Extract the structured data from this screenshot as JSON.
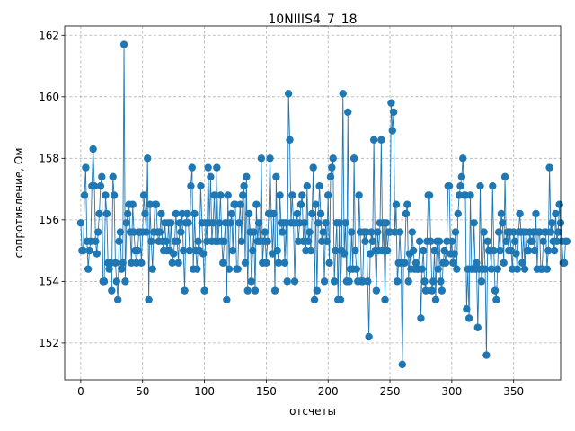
{
  "chart_data": {
    "type": "line",
    "title": "10NIIIS4_7_18",
    "xlabel": "отсчеты",
    "ylabel": "сопротивление, Ом",
    "xlim": [
      -13,
      388
    ],
    "ylim": [
      150.8,
      162.3
    ],
    "xticks": [
      0,
      50,
      100,
      150,
      200,
      250,
      300,
      350
    ],
    "yticks": [
      152,
      154,
      156,
      158,
      160,
      162
    ],
    "grid": true,
    "marker": "circle",
    "line_color": "#1f77b4",
    "series": [
      {
        "name": "",
        "values": [
          155.9,
          155.0,
          155.0,
          156.8,
          157.7,
          155.3,
          154.4,
          155.0,
          155.3,
          157.1,
          158.3,
          157.1,
          155.3,
          154.9,
          155.6,
          156.2,
          157.1,
          157.4,
          154.0,
          154.0,
          156.8,
          156.2,
          154.6,
          154.4,
          154.6,
          153.7,
          157.4,
          156.8,
          154.6,
          154.0,
          153.4,
          155.3,
          155.6,
          154.4,
          154.6,
          161.7,
          154.0,
          155.9,
          156.2,
          156.5,
          155.6,
          154.6,
          156.5,
          155.6,
          155.0,
          154.6,
          155.0,
          155.6,
          155.6,
          154.6,
          155.6,
          156.8,
          156.2,
          155.6,
          158.0,
          153.4,
          156.5,
          155.3,
          154.4,
          155.6,
          156.5,
          156.5,
          155.6,
          155.3,
          155.6,
          156.2,
          155.3,
          155.0,
          155.9,
          155.3,
          155.0,
          155.9,
          155.0,
          155.9,
          154.6,
          154.9,
          155.3,
          156.2,
          155.3,
          154.6,
          155.9,
          155.6,
          156.2,
          155.0,
          153.7,
          155.9,
          156.2,
          155.9,
          155.0,
          157.1,
          157.7,
          154.4,
          156.2,
          155.0,
          154.4,
          155.3,
          155.0,
          157.1,
          155.9,
          154.9,
          153.7,
          155.9,
          155.3,
          157.7,
          155.9,
          157.4,
          155.3,
          155.9,
          156.8,
          155.3,
          157.7,
          155.3,
          155.9,
          156.8,
          155.3,
          154.6,
          155.3,
          155.9,
          153.4,
          156.8,
          154.4,
          155.9,
          156.2,
          155.0,
          156.5,
          156.5,
          154.4,
          154.4,
          155.9,
          156.5,
          155.3,
          156.8,
          157.1,
          154.6,
          157.4,
          153.7,
          156.2,
          155.6,
          154.0,
          155.0,
          155.6,
          153.7,
          156.5,
          155.3,
          155.9,
          155.3,
          158.0,
          154.6,
          155.3,
          155.6,
          154.6,
          155.3,
          156.2,
          158.0,
          156.2,
          154.9,
          156.2,
          153.7,
          157.4,
          155.0,
          154.6,
          156.8,
          155.9,
          155.6,
          155.9,
          154.6,
          155.9,
          154.0,
          160.1,
          158.6,
          155.9,
          156.8,
          155.9,
          154.0,
          155.9,
          156.2,
          155.3,
          155.9,
          156.5,
          156.8,
          155.3,
          155.9,
          155.0,
          157.1,
          155.3,
          155.6,
          155.0,
          156.2,
          157.7,
          153.4,
          156.5,
          153.7,
          155.9,
          157.1,
          156.2,
          155.3,
          155.6,
          154.0,
          155.9,
          155.3,
          156.8,
          154.6,
          157.4,
          157.7,
          158.0,
          154.0,
          155.0,
          155.9,
          153.4,
          155.9,
          153.4,
          155.0,
          160.1,
          154.9,
          155.9,
          154.0,
          159.5,
          154.0,
          154.4,
          155.6,
          154.4,
          158.0,
          155.0,
          154.4,
          154.0,
          156.8,
          155.6,
          154.0,
          154.0,
          155.6,
          155.3,
          155.6,
          154.0,
          152.2,
          154.9,
          155.6,
          155.3,
          158.6,
          155.0,
          153.7,
          155.6,
          155.0,
          155.9,
          158.6,
          155.0,
          155.9,
          153.4,
          155.9,
          155.0,
          155.6,
          155.6,
          159.8,
          158.9,
          159.5,
          155.6,
          156.5,
          154.0,
          154.6,
          155.6,
          154.6,
          151.3,
          154.6,
          154.6,
          156.2,
          156.5,
          154.0,
          154.9,
          154.4,
          155.6,
          155.0,
          154.4,
          154.6,
          154.4,
          154.4,
          155.3,
          152.8,
          154.4,
          155.0,
          154.0,
          153.7,
          155.3,
          156.8,
          156.8,
          155.3,
          153.7,
          154.0,
          155.0,
          153.4,
          155.3,
          154.4,
          155.3,
          154.0,
          153.7,
          154.6,
          155.0,
          154.6,
          155.3,
          157.1,
          157.1,
          154.9,
          155.3,
          154.6,
          154.9,
          155.6,
          154.4,
          156.2,
          156.8,
          157.1,
          157.4,
          158.0,
          156.8,
          156.8,
          153.1,
          154.4,
          152.8,
          156.8,
          154.4,
          154.4,
          155.9,
          154.4,
          154.6,
          152.5,
          154.4,
          157.1,
          154.0,
          154.4,
          155.6,
          154.4,
          151.6,
          155.3,
          155.0,
          155.0,
          154.4,
          157.1,
          155.0,
          153.7,
          153.4,
          154.4,
          155.6,
          155.0,
          156.2,
          155.9,
          154.6,
          157.4,
          155.3,
          155.6,
          155.0,
          155.6,
          155.0,
          154.4,
          155.6,
          155.3,
          154.9,
          154.4,
          155.6,
          156.2,
          155.6,
          154.6,
          155.6,
          154.4,
          155.6,
          155.0,
          155.0,
          155.6,
          155.3,
          155.3,
          155.6,
          155.0,
          156.2,
          154.4,
          155.6,
          155.6,
          154.4,
          154.4,
          155.3,
          155.6,
          155.6,
          154.4,
          155.0,
          157.7,
          155.6,
          155.9,
          155.3,
          155.0,
          156.2,
          155.3,
          155.6,
          156.5,
          155.9,
          155.3,
          154.6,
          154.6,
          155.3,
          155.3
        ]
      }
    ]
  }
}
